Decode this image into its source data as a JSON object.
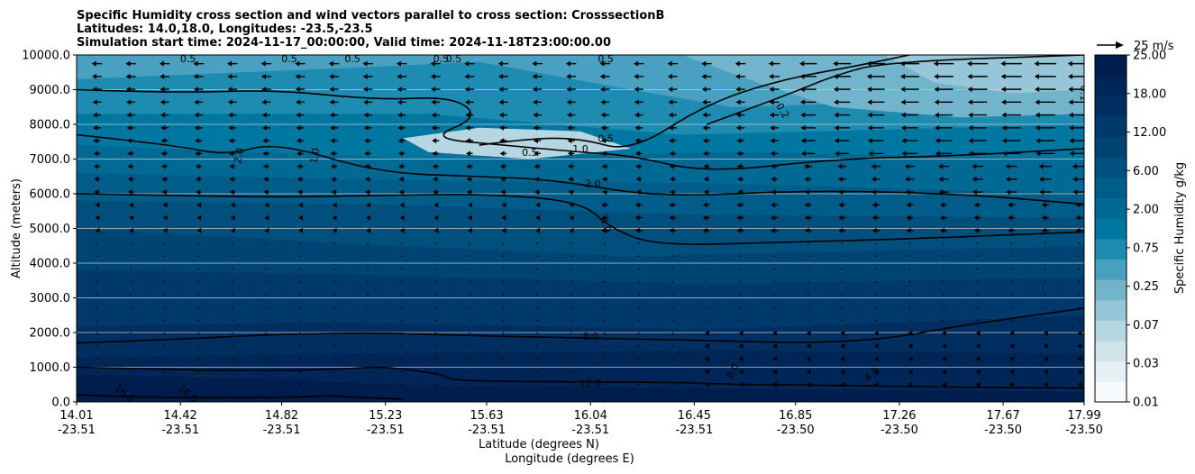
{
  "title_lines": [
    "Specific Humidity cross section and wind vectors parallel to cross section: CrosssectionB",
    "Latitudes: 14.0,18.0, Longitudes: -23.5,-23.5",
    "Simulation start time: 2024-11-17_00:00:00, Valid time: 2024-11-18T23:00:00.00"
  ],
  "chart_data": {
    "type": "heatmap",
    "subtype": "filled-contour cross section with wind vectors",
    "ylabel": "Altitude (meters)",
    "xlabel_lines": [
      "Latitude (degrees N)",
      "Longitude (degrees E)"
    ],
    "ylim": [
      0,
      10000
    ],
    "y_ticks": [
      "0.0",
      "1000.0",
      "2000.0",
      "3000.0",
      "4000.0",
      "5000.0",
      "6000.0",
      "7000.0",
      "8000.0",
      "9000.0",
      "10000.0"
    ],
    "y_tick_values": [
      0,
      1000,
      2000,
      3000,
      4000,
      5000,
      6000,
      7000,
      8000,
      9000,
      10000
    ],
    "xlim": [
      14.01,
      17.99
    ],
    "x_ticks": [
      {
        "lat": "14.01",
        "lon": "-23.51"
      },
      {
        "lat": "14.42",
        "lon": "-23.51"
      },
      {
        "lat": "14.82",
        "lon": "-23.51"
      },
      {
        "lat": "15.23",
        "lon": "-23.51"
      },
      {
        "lat": "15.63",
        "lon": "-23.51"
      },
      {
        "lat": "16.04",
        "lon": "-23.51"
      },
      {
        "lat": "16.45",
        "lon": "-23.51"
      },
      {
        "lat": "16.85",
        "lon": "-23.50"
      },
      {
        "lat": "17.26",
        "lon": "-23.50"
      },
      {
        "lat": "17.67",
        "lon": "-23.50"
      },
      {
        "lat": "17.99",
        "lon": "-23.50"
      }
    ],
    "grid": "horizontal",
    "colorbar": {
      "label": "Specific Humidity g/kg",
      "levels": [
        "0.01",
        "0.03",
        "0.07",
        "0.25",
        "0.75",
        "2.00",
        "6.00",
        "12.00",
        "18.00",
        "25.00"
      ],
      "colormap": "PuBu",
      "colors": [
        "#f8fbfd",
        "#e6f0f5",
        "#d0e4ec",
        "#b6d7e2",
        "#96c6d8",
        "#72b4cc",
        "#4aa0c0",
        "#1e8bb0",
        "#0077a0",
        "#006a94",
        "#005c88",
        "#004f7d",
        "#004474",
        "#00396b",
        "#002e60",
        "#002657",
        "#001e4d"
      ]
    },
    "wind_key": {
      "label": "25 m/s",
      "value": 25
    },
    "contour_levels": [
      "0.1",
      "0.2",
      "0.5",
      "1.0",
      "2.0",
      "4.0",
      "8.0",
      "12.0",
      "16.0"
    ],
    "contour_labels_shown": [
      "0.5",
      "0.5",
      "0.5",
      "0.5",
      "0.5",
      "0.5",
      "0.1",
      "0.2",
      "2.0",
      "1.0",
      "0.5",
      "1.0",
      "0.5",
      "2.0",
      "4.0",
      "8.0",
      "8.0",
      "12.0",
      "16.0",
      "16.0",
      "4.0"
    ],
    "contours": [
      {
        "level": "16.0",
        "points": [
          [
            14.01,
            200
          ],
          [
            14.2,
            150
          ],
          [
            14.5,
            120
          ],
          [
            14.9,
            140
          ],
          [
            15.0,
            180
          ],
          [
            15.1,
            140
          ],
          [
            15.3,
            80
          ]
        ]
      },
      {
        "level": "12.0",
        "points": [
          [
            14.01,
            1000
          ],
          [
            14.3,
            950
          ],
          [
            14.6,
            900
          ],
          [
            15.0,
            920
          ],
          [
            15.2,
            1020
          ],
          [
            15.3,
            950
          ],
          [
            15.45,
            800
          ],
          [
            15.5,
            600
          ],
          [
            16.0,
            580
          ],
          [
            16.4,
            560
          ],
          [
            16.6,
            500
          ],
          [
            17.0,
            480
          ],
          [
            17.5,
            420
          ],
          [
            17.99,
            400
          ]
        ]
      },
      {
        "level": "8.0",
        "points": [
          [
            14.01,
            1700
          ],
          [
            14.4,
            1800
          ],
          [
            14.8,
            1950
          ],
          [
            15.2,
            2000
          ],
          [
            15.6,
            1900
          ],
          [
            16.0,
            1850
          ],
          [
            16.6,
            1750
          ],
          [
            16.9,
            1700
          ],
          [
            17.2,
            1800
          ],
          [
            17.5,
            2200
          ],
          [
            17.99,
            2700
          ]
        ]
      },
      {
        "level": "4.0",
        "points": [
          [
            14.01,
            6000
          ],
          [
            14.4,
            5950
          ],
          [
            14.8,
            5900
          ],
          [
            15.2,
            5950
          ],
          [
            15.6,
            6000
          ],
          [
            16.0,
            5800
          ],
          [
            16.12,
            5000
          ],
          [
            16.3,
            4500
          ],
          [
            16.8,
            4600
          ],
          [
            17.3,
            4700
          ],
          [
            17.99,
            4900
          ]
        ]
      },
      {
        "level": "2.0",
        "points": [
          [
            14.01,
            7700
          ],
          [
            14.4,
            7400
          ],
          [
            14.6,
            7100
          ],
          [
            14.8,
            7500
          ],
          [
            15.2,
            6600
          ],
          [
            15.6,
            6500
          ],
          [
            15.9,
            6400
          ],
          [
            16.3,
            5900
          ],
          [
            16.9,
            6100
          ],
          [
            17.5,
            6000
          ],
          [
            17.99,
            5700
          ]
        ]
      },
      {
        "level": "1.0",
        "points": [
          [
            14.01,
            9000
          ],
          [
            14.4,
            8900
          ],
          [
            14.8,
            9000
          ],
          [
            15.2,
            8700
          ],
          [
            15.5,
            8800
          ],
          [
            15.6,
            8200
          ],
          [
            15.4,
            7600
          ],
          [
            15.7,
            7400
          ],
          [
            16.0,
            7200
          ],
          [
            16.2,
            7100
          ],
          [
            16.5,
            6600
          ],
          [
            17.0,
            7000
          ],
          [
            17.5,
            7100
          ],
          [
            17.99,
            7300
          ]
        ]
      },
      {
        "level": "0.5",
        "points": [
          [
            15.6,
            7400
          ],
          [
            15.8,
            7600
          ],
          [
            16.0,
            7600
          ],
          [
            16.2,
            7200
          ],
          [
            16.5,
            8600
          ],
          [
            16.8,
            9300
          ],
          [
            17.1,
            9700
          ],
          [
            17.3,
            10000
          ]
        ]
      },
      {
        "level": "0.2",
        "points": [
          [
            16.5,
            8000
          ],
          [
            16.8,
            8800
          ],
          [
            17.0,
            9400
          ],
          [
            17.2,
            9800
          ],
          [
            17.99,
            10000
          ]
        ]
      }
    ]
  }
}
